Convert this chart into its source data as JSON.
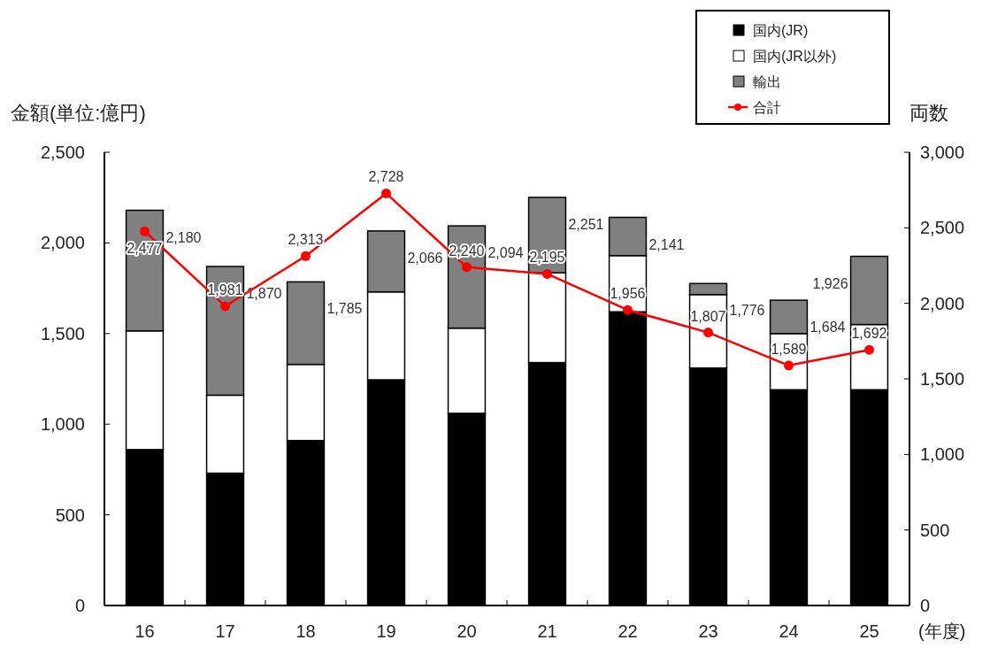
{
  "chart_data": {
    "type": "bar",
    "stacked": true,
    "xlabel": "(年度)",
    "ylabel": "金額(単位:億円)",
    "y2label": "両数",
    "categories": [
      "16",
      "17",
      "18",
      "19",
      "20",
      "21",
      "22",
      "23",
      "24",
      "25"
    ],
    "series": [
      {
        "name": "国内(JR)",
        "color": "#000000",
        "values": [
          860,
          730,
          910,
          1245,
          1060,
          1340,
          1620,
          1310,
          1190,
          1190
        ]
      },
      {
        "name": "国内(JR以外)",
        "color": "#ffffff",
        "values": [
          655,
          430,
          420,
          485,
          470,
          495,
          310,
          405,
          310,
          360
        ]
      },
      {
        "name": "輸出",
        "color": "#808080",
        "values": [
          665,
          710,
          455,
          336,
          564,
          416,
          211,
          61,
          184,
          376
        ]
      },
      {
        "name": "合計",
        "type": "line",
        "axis": "y2",
        "color": "#ff0000",
        "marker": "circle",
        "values": [
          2477,
          1981,
          2313,
          2728,
          2240,
          2195,
          1956,
          1807,
          1589,
          1692
        ],
        "value_labels": [
          "2,477",
          "1,981",
          "2,313",
          "2,728",
          "2,240",
          "2,195",
          "1,956",
          "1,807",
          "1,589",
          "1,692"
        ]
      }
    ],
    "totals": [
      "2,180",
      "1,870",
      "1,785",
      "2,066",
      "2,094",
      "2,251",
      "2,141",
      "1,776",
      "1,684",
      "1,926"
    ],
    "ylim": [
      0,
      2500
    ],
    "yticks": [
      0,
      500,
      {
        "value": 1000,
        "label": "1,000"
      },
      {
        "value": 1500,
        "label": "1,500"
      },
      {
        "value": 2000,
        "label": "2,000"
      },
      {
        "value": 2500,
        "label": "2,500"
      }
    ],
    "y2lim": [
      0,
      3000
    ],
    "y2ticks": [
      0,
      500,
      {
        "value": 1000,
        "label": "1,000"
      },
      {
        "value": 1500,
        "label": "1,500"
      },
      {
        "value": 2000,
        "label": "2,000"
      },
      {
        "value": 2500,
        "label": "2,500"
      },
      {
        "value": 3000,
        "label": "3,000"
      }
    ],
    "grid": false,
    "legend": "top right"
  }
}
